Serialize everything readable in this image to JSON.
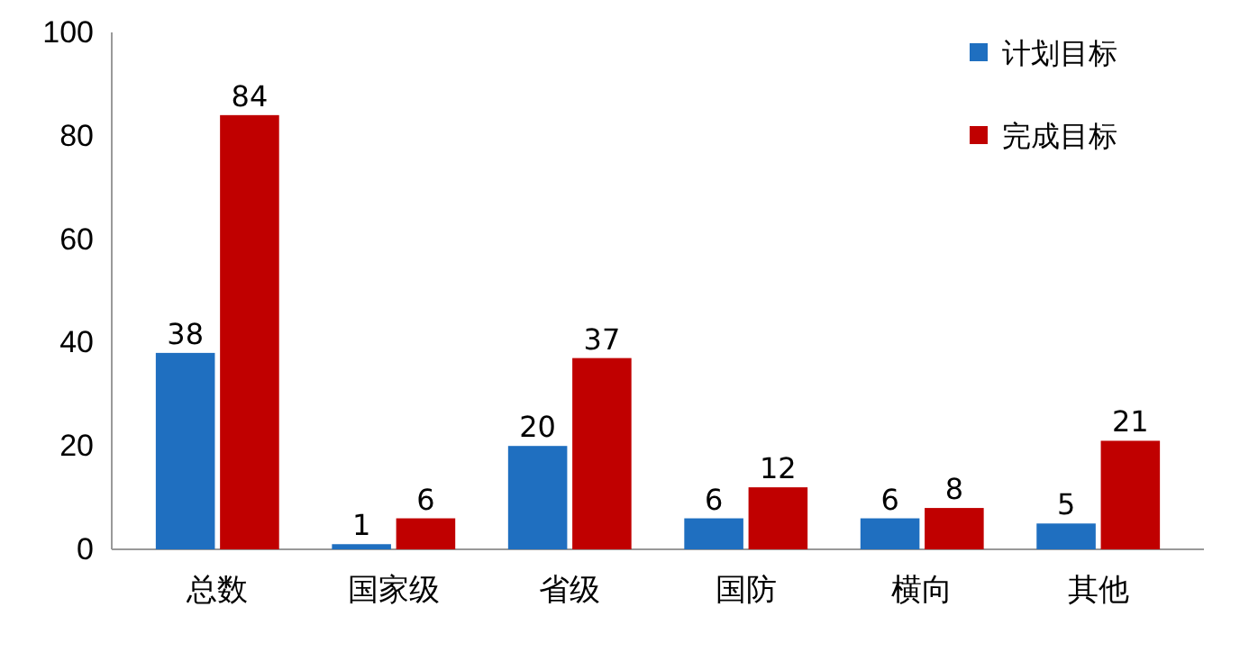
{
  "chart_data": {
    "type": "bar",
    "categories": [
      "总数",
      "国家级",
      "省级",
      "国防",
      "横向",
      "其他"
    ],
    "series": [
      {
        "name": "计划目标",
        "color": "#1f6fc0",
        "values": [
          38,
          1,
          20,
          6,
          6,
          5
        ]
      },
      {
        "name": "完成目标",
        "color": "#c00000",
        "values": [
          84,
          6,
          37,
          12,
          8,
          21
        ]
      }
    ],
    "ylim": [
      0,
      100
    ],
    "yticks": [
      0,
      20,
      40,
      60,
      80,
      100
    ],
    "data_labels": true,
    "legend": "top right"
  }
}
